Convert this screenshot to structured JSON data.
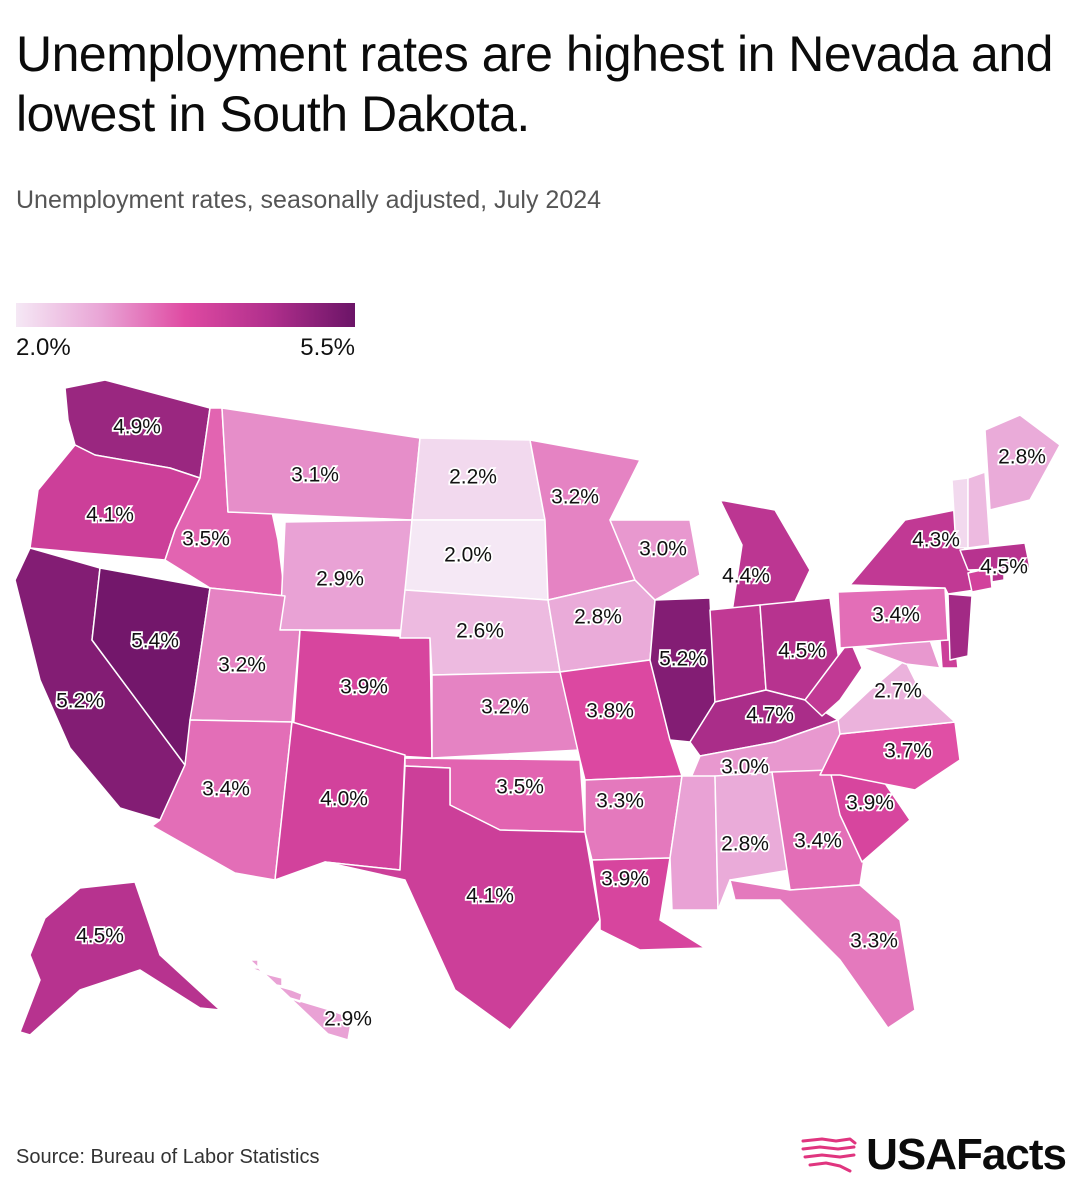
{
  "title": "Unemployment rates are highest in Nevada and lowest in South Dakota.",
  "subtitle": "Unemployment rates, seasonally adjusted, July 2024",
  "legend": {
    "min_label": "2.0%",
    "max_label": "5.5%",
    "min": 2.0,
    "max": 5.5,
    "colors": [
      "#f5e8f5",
      "#e9a5d6",
      "#df4aa2",
      "#b02f8c",
      "#6b1467"
    ]
  },
  "source": "Source: Bureau of Labor Statistics",
  "brand": {
    "name": "USAFacts",
    "icon": "usa-map-icon",
    "accent": "#e0357f"
  },
  "chart_data": {
    "type": "choropleth",
    "value_unit": "%",
    "states": [
      {
        "state": "WA",
        "value": 4.9,
        "label": "4.9%"
      },
      {
        "state": "OR",
        "value": 4.1,
        "label": "4.1%"
      },
      {
        "state": "CA",
        "value": 5.2,
        "label": "5.2%"
      },
      {
        "state": "NV",
        "value": 5.4,
        "label": "5.4%"
      },
      {
        "state": "ID",
        "value": 3.5,
        "label": "3.5%"
      },
      {
        "state": "MT",
        "value": 3.1,
        "label": "3.1%"
      },
      {
        "state": "WY",
        "value": 2.9,
        "label": "2.9%"
      },
      {
        "state": "UT",
        "value": 3.2,
        "label": "3.2%"
      },
      {
        "state": "AZ",
        "value": 3.4,
        "label": "3.4%"
      },
      {
        "state": "CO",
        "value": 3.9,
        "label": "3.9%"
      },
      {
        "state": "NM",
        "value": 4.0,
        "label": "4.0%"
      },
      {
        "state": "ND",
        "value": 2.2,
        "label": "2.2%"
      },
      {
        "state": "SD",
        "value": 2.0,
        "label": "2.0%"
      },
      {
        "state": "NE",
        "value": 2.6,
        "label": "2.6%"
      },
      {
        "state": "KS",
        "value": 3.2,
        "label": "3.2%"
      },
      {
        "state": "OK",
        "value": 3.5,
        "label": "3.5%"
      },
      {
        "state": "TX",
        "value": 4.1,
        "label": "4.1%"
      },
      {
        "state": "MN",
        "value": 3.2,
        "label": "3.2%"
      },
      {
        "state": "IA",
        "value": 2.8,
        "label": "2.8%"
      },
      {
        "state": "MO",
        "value": 3.8,
        "label": "3.8%"
      },
      {
        "state": "AR",
        "value": 3.3,
        "label": "3.3%"
      },
      {
        "state": "LA",
        "value": 3.9,
        "label": "3.9%"
      },
      {
        "state": "WI",
        "value": 3.0,
        "label": "3.0%"
      },
      {
        "state": "IL",
        "value": 5.2,
        "label": "5.2%"
      },
      {
        "state": "MI",
        "value": 4.4,
        "label": "4.4%"
      },
      {
        "state": "IN",
        "value": 4.3,
        "label": ""
      },
      {
        "state": "OH",
        "value": 4.5,
        "label": "4.5%"
      },
      {
        "state": "KY",
        "value": 4.7,
        "label": "4.7%"
      },
      {
        "state": "TN",
        "value": 3.0,
        "label": "3.0%"
      },
      {
        "state": "MS",
        "value": 2.9,
        "label": ""
      },
      {
        "state": "AL",
        "value": 2.8,
        "label": "2.8%"
      },
      {
        "state": "GA",
        "value": 3.4,
        "label": "3.4%"
      },
      {
        "state": "FL",
        "value": 3.3,
        "label": "3.3%"
      },
      {
        "state": "SC",
        "value": 3.9,
        "label": "3.9%"
      },
      {
        "state": "NC",
        "value": 3.7,
        "label": "3.7%"
      },
      {
        "state": "VA",
        "value": 2.7,
        "label": "2.7%"
      },
      {
        "state": "WV",
        "value": 4.3,
        "label": ""
      },
      {
        "state": "MD",
        "value": 3.0,
        "label": ""
      },
      {
        "state": "DE",
        "value": 4.1,
        "label": ""
      },
      {
        "state": "PA",
        "value": 3.4,
        "label": "3.4%"
      },
      {
        "state": "NJ",
        "value": 4.8,
        "label": ""
      },
      {
        "state": "NY",
        "value": 4.3,
        "label": "4.3%"
      },
      {
        "state": "CT",
        "value": 4.0,
        "label": ""
      },
      {
        "state": "RI",
        "value": 4.5,
        "label": ""
      },
      {
        "state": "MA",
        "value": 4.5,
        "label": "4.5%"
      },
      {
        "state": "VT",
        "value": 2.2,
        "label": ""
      },
      {
        "state": "NH",
        "value": 2.6,
        "label": ""
      },
      {
        "state": "ME",
        "value": 2.8,
        "label": "2.8%"
      },
      {
        "state": "AK",
        "value": 4.5,
        "label": "4.5%"
      },
      {
        "state": "HI",
        "value": 2.9,
        "label": "2.9%"
      }
    ]
  }
}
